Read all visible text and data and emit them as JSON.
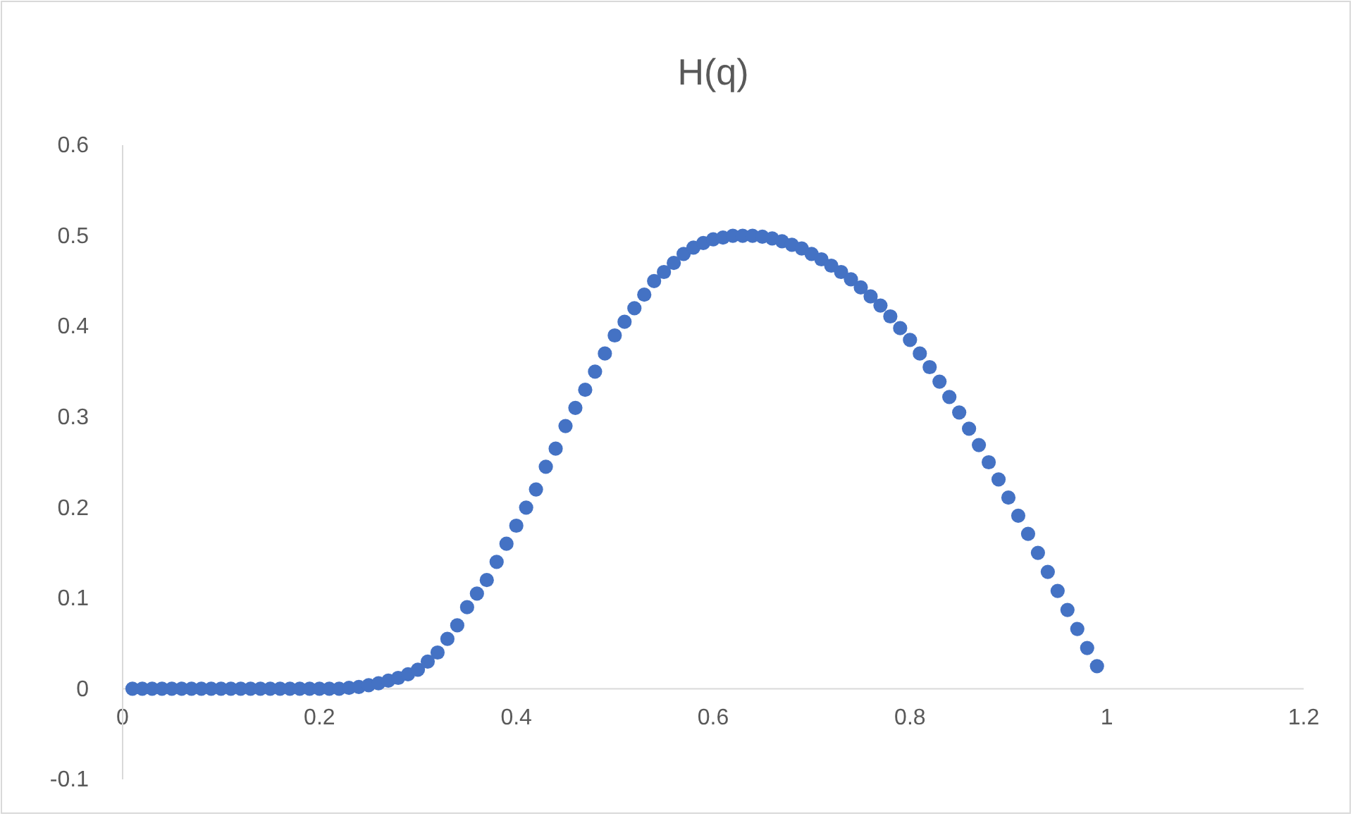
{
  "chart_data": {
    "type": "scatter",
    "title": "H(q)",
    "marker": "circle",
    "grid": false,
    "x": [
      0.01,
      0.02,
      0.03,
      0.04,
      0.05,
      0.06,
      0.07,
      0.08,
      0.09,
      0.1,
      0.11,
      0.12,
      0.13,
      0.14,
      0.15,
      0.16,
      0.17,
      0.18,
      0.19,
      0.2,
      0.21,
      0.22,
      0.23,
      0.24,
      0.25,
      0.26,
      0.27,
      0.28,
      0.29,
      0.3,
      0.31,
      0.32,
      0.33,
      0.34,
      0.35,
      0.36,
      0.37,
      0.38,
      0.39,
      0.4,
      0.41,
      0.42,
      0.43,
      0.44,
      0.45,
      0.46,
      0.47,
      0.48,
      0.49,
      0.5,
      0.51,
      0.52,
      0.53,
      0.54,
      0.55,
      0.56,
      0.57,
      0.58,
      0.59,
      0.6,
      0.61,
      0.62,
      0.63,
      0.64,
      0.65,
      0.66,
      0.67,
      0.68,
      0.69,
      0.7,
      0.71,
      0.72,
      0.73,
      0.74,
      0.75,
      0.76,
      0.77,
      0.78,
      0.79,
      0.8,
      0.81,
      0.82,
      0.83,
      0.84,
      0.85,
      0.86,
      0.87,
      0.88,
      0.89,
      0.9,
      0.91,
      0.92,
      0.93,
      0.94,
      0.95,
      0.96,
      0.97,
      0.98,
      0.99
    ],
    "series": [
      {
        "color": "#4472c4",
        "values": [
          0,
          0,
          0,
          0,
          0,
          0,
          0,
          0,
          0,
          0,
          0,
          0,
          0,
          0,
          0,
          0,
          0,
          0,
          0,
          0,
          0,
          0,
          0.001,
          0.002,
          0.004,
          0.006,
          0.009,
          0.012,
          0.016,
          0.021,
          0.03,
          0.04,
          0.055,
          0.07,
          0.09,
          0.105,
          0.12,
          0.14,
          0.16,
          0.18,
          0.2,
          0.22,
          0.245,
          0.265,
          0.29,
          0.31,
          0.33,
          0.35,
          0.37,
          0.39,
          0.405,
          0.42,
          0.435,
          0.45,
          0.46,
          0.47,
          0.48,
          0.487,
          0.492,
          0.496,
          0.498,
          0.5,
          0.5,
          0.5,
          0.499,
          0.497,
          0.494,
          0.49,
          0.486,
          0.48,
          0.474,
          0.467,
          0.46,
          0.452,
          0.443,
          0.433,
          0.423,
          0.411,
          0.398,
          0.385,
          0.37,
          0.355,
          0.339,
          0.322,
          0.305,
          0.287,
          0.269,
          0.25,
          0.231,
          0.211,
          0.191,
          0.171,
          0.15,
          0.129,
          0.108,
          0.087,
          0.066,
          0.045,
          0.025
        ]
      }
    ],
    "xlim": [
      0,
      1.2
    ],
    "xticks": [
      0,
      0.2,
      0.4,
      0.6,
      0.8,
      1,
      1.2
    ],
    "ylim": [
      -0.1,
      0.6
    ],
    "yticks": [
      -0.1,
      0,
      0.1,
      0.2,
      0.3,
      0.4,
      0.5,
      0.6
    ]
  }
}
